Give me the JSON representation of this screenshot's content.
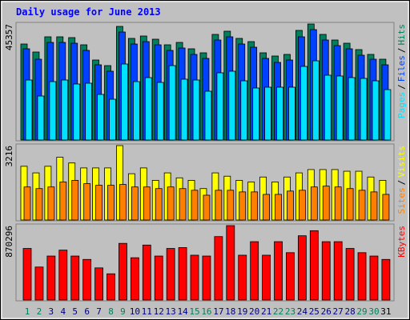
{
  "chart_data": [
    {
      "type": "bar",
      "title": "Daily usage for June 2013",
      "legend_separator": "/",
      "ylim": [
        0,
        45357
      ],
      "yticks": [
        45357
      ],
      "series": [
        {
          "name": "Hits",
          "color": "#00805c",
          "values": [
            37536,
            34408,
            40351,
            40351,
            40038,
            37223,
            31280,
            29090,
            44418,
            39726,
            40664,
            39413,
            37223,
            38162,
            35659,
            34095,
            41290,
            42541,
            39726,
            38474,
            34095,
            32844,
            33470,
            42854,
            45357,
            41290,
            39100,
            37849,
            35346,
            33470,
            31593
          ]
        },
        {
          "name": "Files",
          "color": "#0040ff",
          "values": [
            35659,
            31593,
            38162,
            38162,
            37849,
            35034,
            29403,
            26901,
            42228,
            37536,
            38474,
            37223,
            35034,
            35972,
            33470,
            31906,
            39100,
            40351,
            37536,
            36285,
            31906,
            30342,
            31280,
            40351,
            43166,
            39100,
            36910,
            35659,
            33157,
            31593,
            29403
          ]
        },
        {
          "name": "Pages",
          "color": "#00e0ff",
          "values": [
            23460,
            17204,
            22834,
            23460,
            21896,
            22209,
            17830,
            15953,
            29716,
            22834,
            24398,
            22522,
            29090,
            23773,
            23460,
            19081,
            26275,
            26901,
            23147,
            20332,
            20645,
            20645,
            20645,
            28778,
            30967,
            25337,
            25024,
            24398,
            24086,
            23147,
            19706
          ]
        }
      ]
    },
    {
      "type": "bar",
      "legend_separator": "/",
      "ylim": [
        0,
        3216
      ],
      "yticks": [
        3216
      ],
      "series": [
        {
          "name": "Visits",
          "color": "#ffff00",
          "values": [
            2322,
            2037,
            2322,
            2715,
            2465,
            2251,
            2251,
            2251,
            3216,
            2001,
            2251,
            1715,
            2037,
            1822,
            1715,
            1358,
            2037,
            1894,
            1715,
            1644,
            1858,
            1644,
            1858,
            2037,
            2180,
            2180,
            2180,
            2108,
            2108,
            1858,
            1715
          ]
        },
        {
          "name": "Sites",
          "color": "#ff8000",
          "values": [
            1429,
            1358,
            1429,
            1644,
            1715,
            1572,
            1501,
            1501,
            1536,
            1429,
            1429,
            1358,
            1429,
            1358,
            1286,
            1072,
            1286,
            1286,
            1215,
            1215,
            1108,
            1108,
            1251,
            1286,
            1429,
            1465,
            1429,
            1358,
            1286,
            1215,
            1108
          ]
        }
      ]
    },
    {
      "type": "bar",
      "ylim": [
        0,
        870296
      ],
      "yticks": [
        870296
      ],
      "categories": [
        "1",
        "2",
        "3",
        "4",
        "5",
        "6",
        "7",
        "8",
        "9",
        "10",
        "11",
        "12",
        "13",
        "14",
        "15",
        "16",
        "17",
        "18",
        "19",
        "20",
        "21",
        "22",
        "23",
        "24",
        "25",
        "26",
        "27",
        "28",
        "29",
        "30",
        "31"
      ],
      "label_colors": [
        "#00805c",
        "#00805c",
        "#000080",
        "#000080",
        "#000080",
        "#000080",
        "#000080",
        "#00805c",
        "#00805c",
        "#000080",
        "#000080",
        "#000080",
        "#000080",
        "#000080",
        "#00805c",
        "#00805c",
        "#000080",
        "#000080",
        "#000080",
        "#000080",
        "#000080",
        "#00805c",
        "#00805c",
        "#000080",
        "#000080",
        "#000080",
        "#000080",
        "#000080",
        "#00805c",
        "#00805c",
        "#000000"
      ],
      "series": [
        {
          "name": "KBytes",
          "color": "#ff0000",
          "values": [
            603290,
            385710,
            514280,
            583510,
            514280,
            474720,
            375820,
            306590,
            662630,
            494500,
            642850,
            514280,
            603290,
            613180,
            524170,
            514280,
            741750,
            870296,
            524170,
            682410,
            524170,
            682410,
            553840,
            751640,
            810980,
            682410,
            682410,
            603290,
            553840,
            514280,
            474720
          ]
        }
      ]
    }
  ]
}
